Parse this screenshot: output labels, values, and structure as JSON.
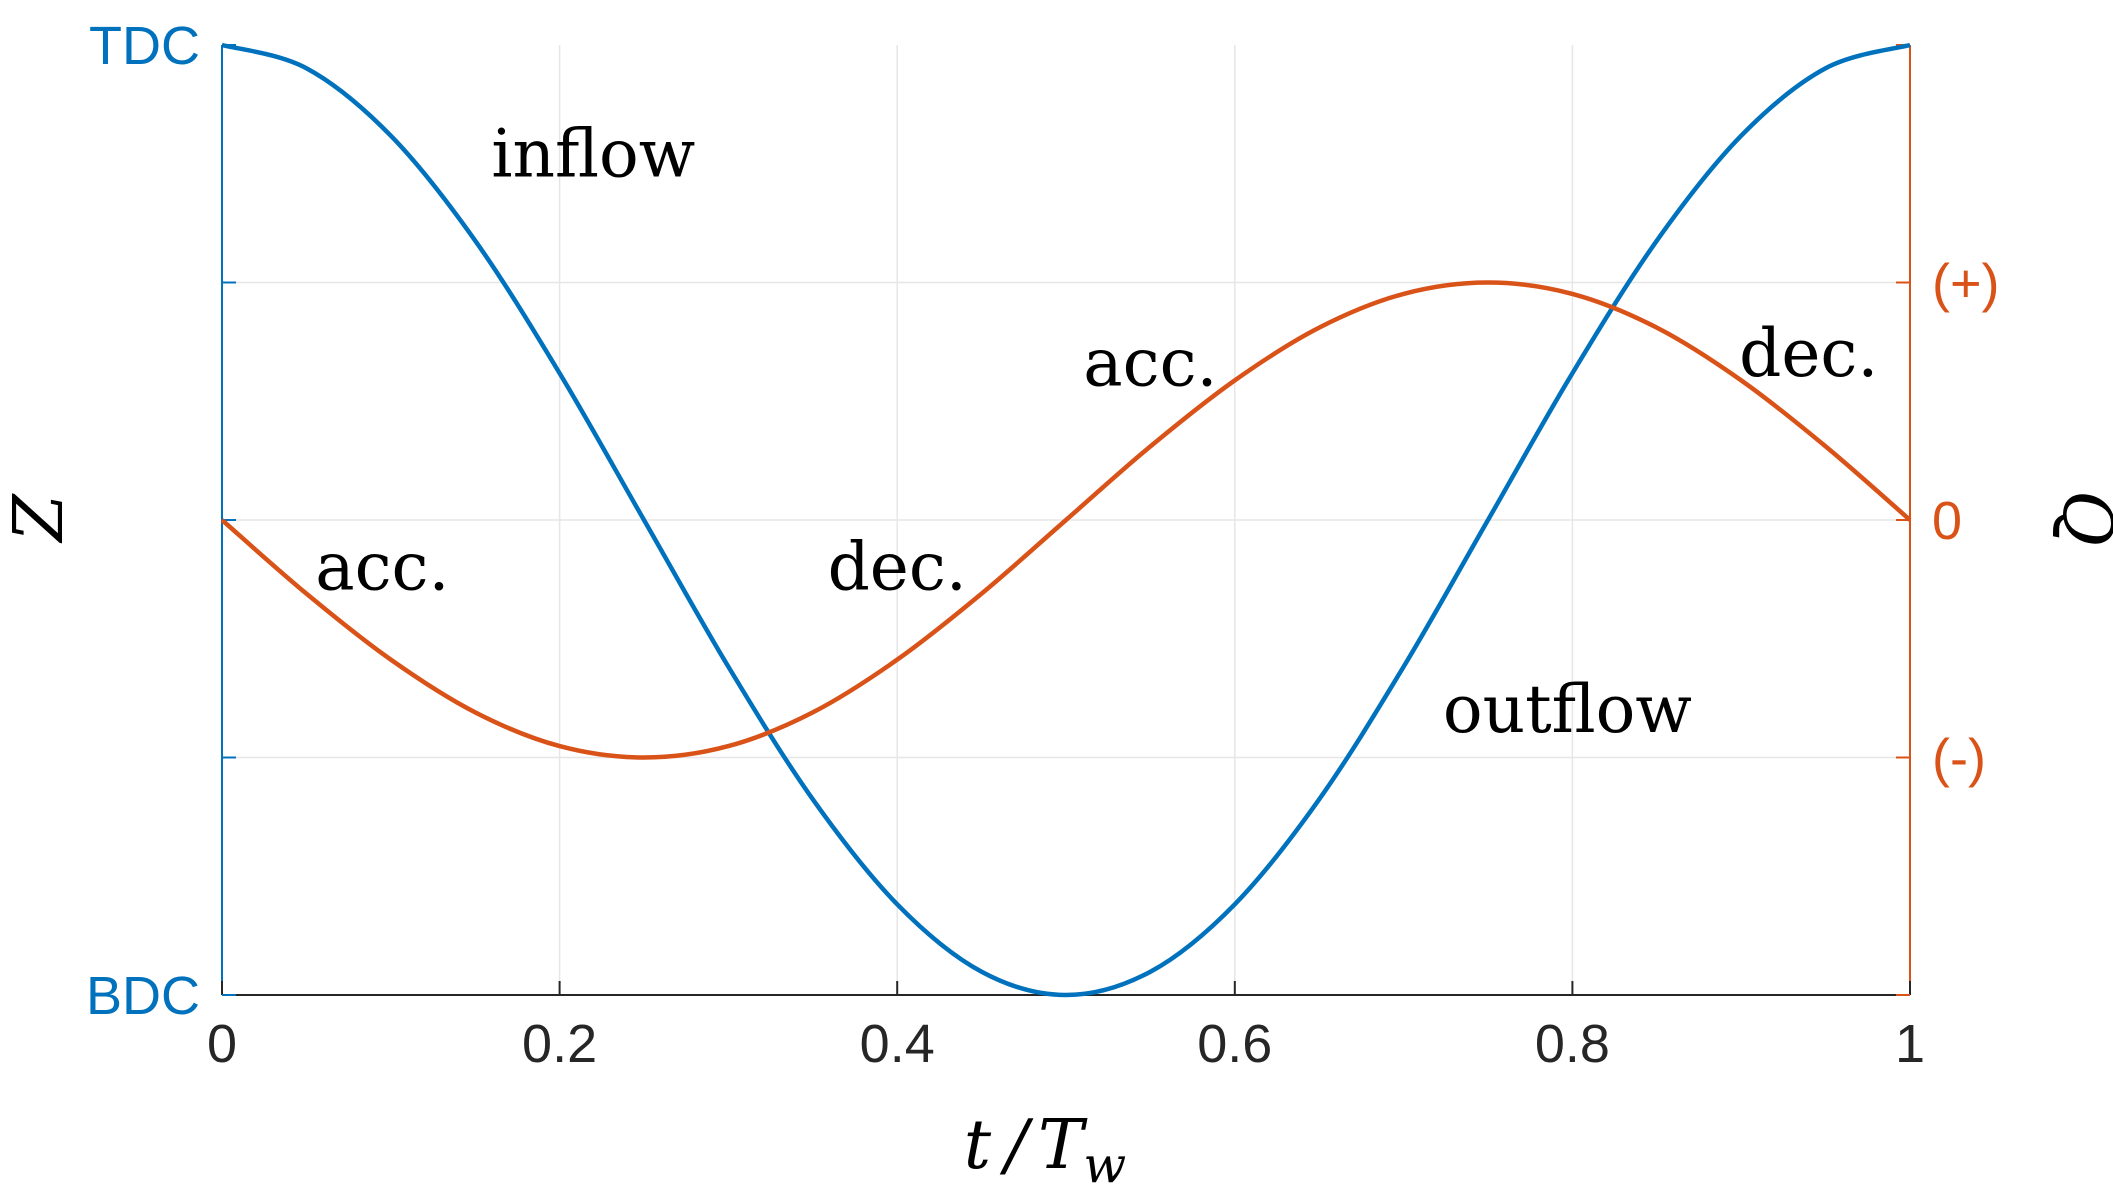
{
  "chart_data": {
    "type": "line",
    "xlabel": "t / T_w",
    "xlabel_parts": {
      "t": "t",
      "slash": "/",
      "T": "T",
      "sub": "w"
    },
    "ylabel_left": "Z",
    "ylabel_right": "Q",
    "xlim": [
      0,
      1
    ],
    "x_ticks": [
      0,
      0.2,
      0.4,
      0.6,
      0.8,
      1
    ],
    "x_tick_labels": [
      "0",
      "0.2",
      "0.4",
      "0.6",
      "0.8",
      "1"
    ],
    "left_axis": {
      "color": "#0072BD",
      "ylim": [
        -1,
        1
      ],
      "ticks": [
        -1,
        -0.5,
        0,
        0.5,
        1
      ],
      "tick_labels": [
        {
          "value": 1,
          "label": "TDC"
        },
        {
          "value": -1,
          "label": "BDC"
        }
      ]
    },
    "right_axis": {
      "color": "#D95319",
      "ylim": [
        -1,
        1
      ],
      "ticks": [
        -1,
        -0.5,
        0,
        0.5,
        1
      ],
      "tick_labels": [
        {
          "value": 0.5,
          "label": "(+)"
        },
        {
          "value": 0,
          "label": "0"
        },
        {
          "value": -0.5,
          "label": "(-)"
        }
      ]
    },
    "grid": true,
    "series": [
      {
        "axis": "left",
        "color": "#0072BD",
        "x": [
          0,
          0.05,
          0.1,
          0.15,
          0.2,
          0.25,
          0.3,
          0.35,
          0.4,
          0.45,
          0.5,
          0.55,
          0.6,
          0.65,
          0.7,
          0.75,
          0.8,
          0.85,
          0.9,
          0.95,
          1
        ],
        "y": [
          1,
          0.951,
          0.809,
          0.588,
          0.309,
          0,
          -0.309,
          -0.588,
          -0.809,
          -0.951,
          -1,
          -0.951,
          -0.809,
          -0.588,
          -0.309,
          0,
          0.309,
          0.588,
          0.809,
          0.951,
          1
        ]
      },
      {
        "axis": "right",
        "color": "#D95319",
        "x": [
          0,
          0.05,
          0.1,
          0.15,
          0.2,
          0.25,
          0.3,
          0.35,
          0.4,
          0.45,
          0.5,
          0.55,
          0.6,
          0.65,
          0.7,
          0.75,
          0.8,
          0.85,
          0.9,
          0.95,
          1
        ],
        "y": [
          0,
          -0.155,
          -0.294,
          -0.405,
          -0.476,
          -0.5,
          -0.476,
          -0.405,
          -0.294,
          -0.155,
          0,
          0.155,
          0.294,
          0.405,
          0.476,
          0.5,
          0.476,
          0.405,
          0.294,
          0.155,
          0
        ]
      }
    ],
    "annotations": [
      {
        "text": "inflow",
        "x": 0.22,
        "y": 0.77
      },
      {
        "text": "outflow",
        "x": 0.797,
        "y": -0.4
      },
      {
        "text": "acc.",
        "x": 0.095,
        "y": -0.1
      },
      {
        "text": "dec.",
        "x": 0.4,
        "y": -0.1
      },
      {
        "text": "acc.",
        "x": 0.55,
        "y": 0.33
      },
      {
        "text": "dec.",
        "x": 0.94,
        "y": 0.35
      }
    ]
  }
}
